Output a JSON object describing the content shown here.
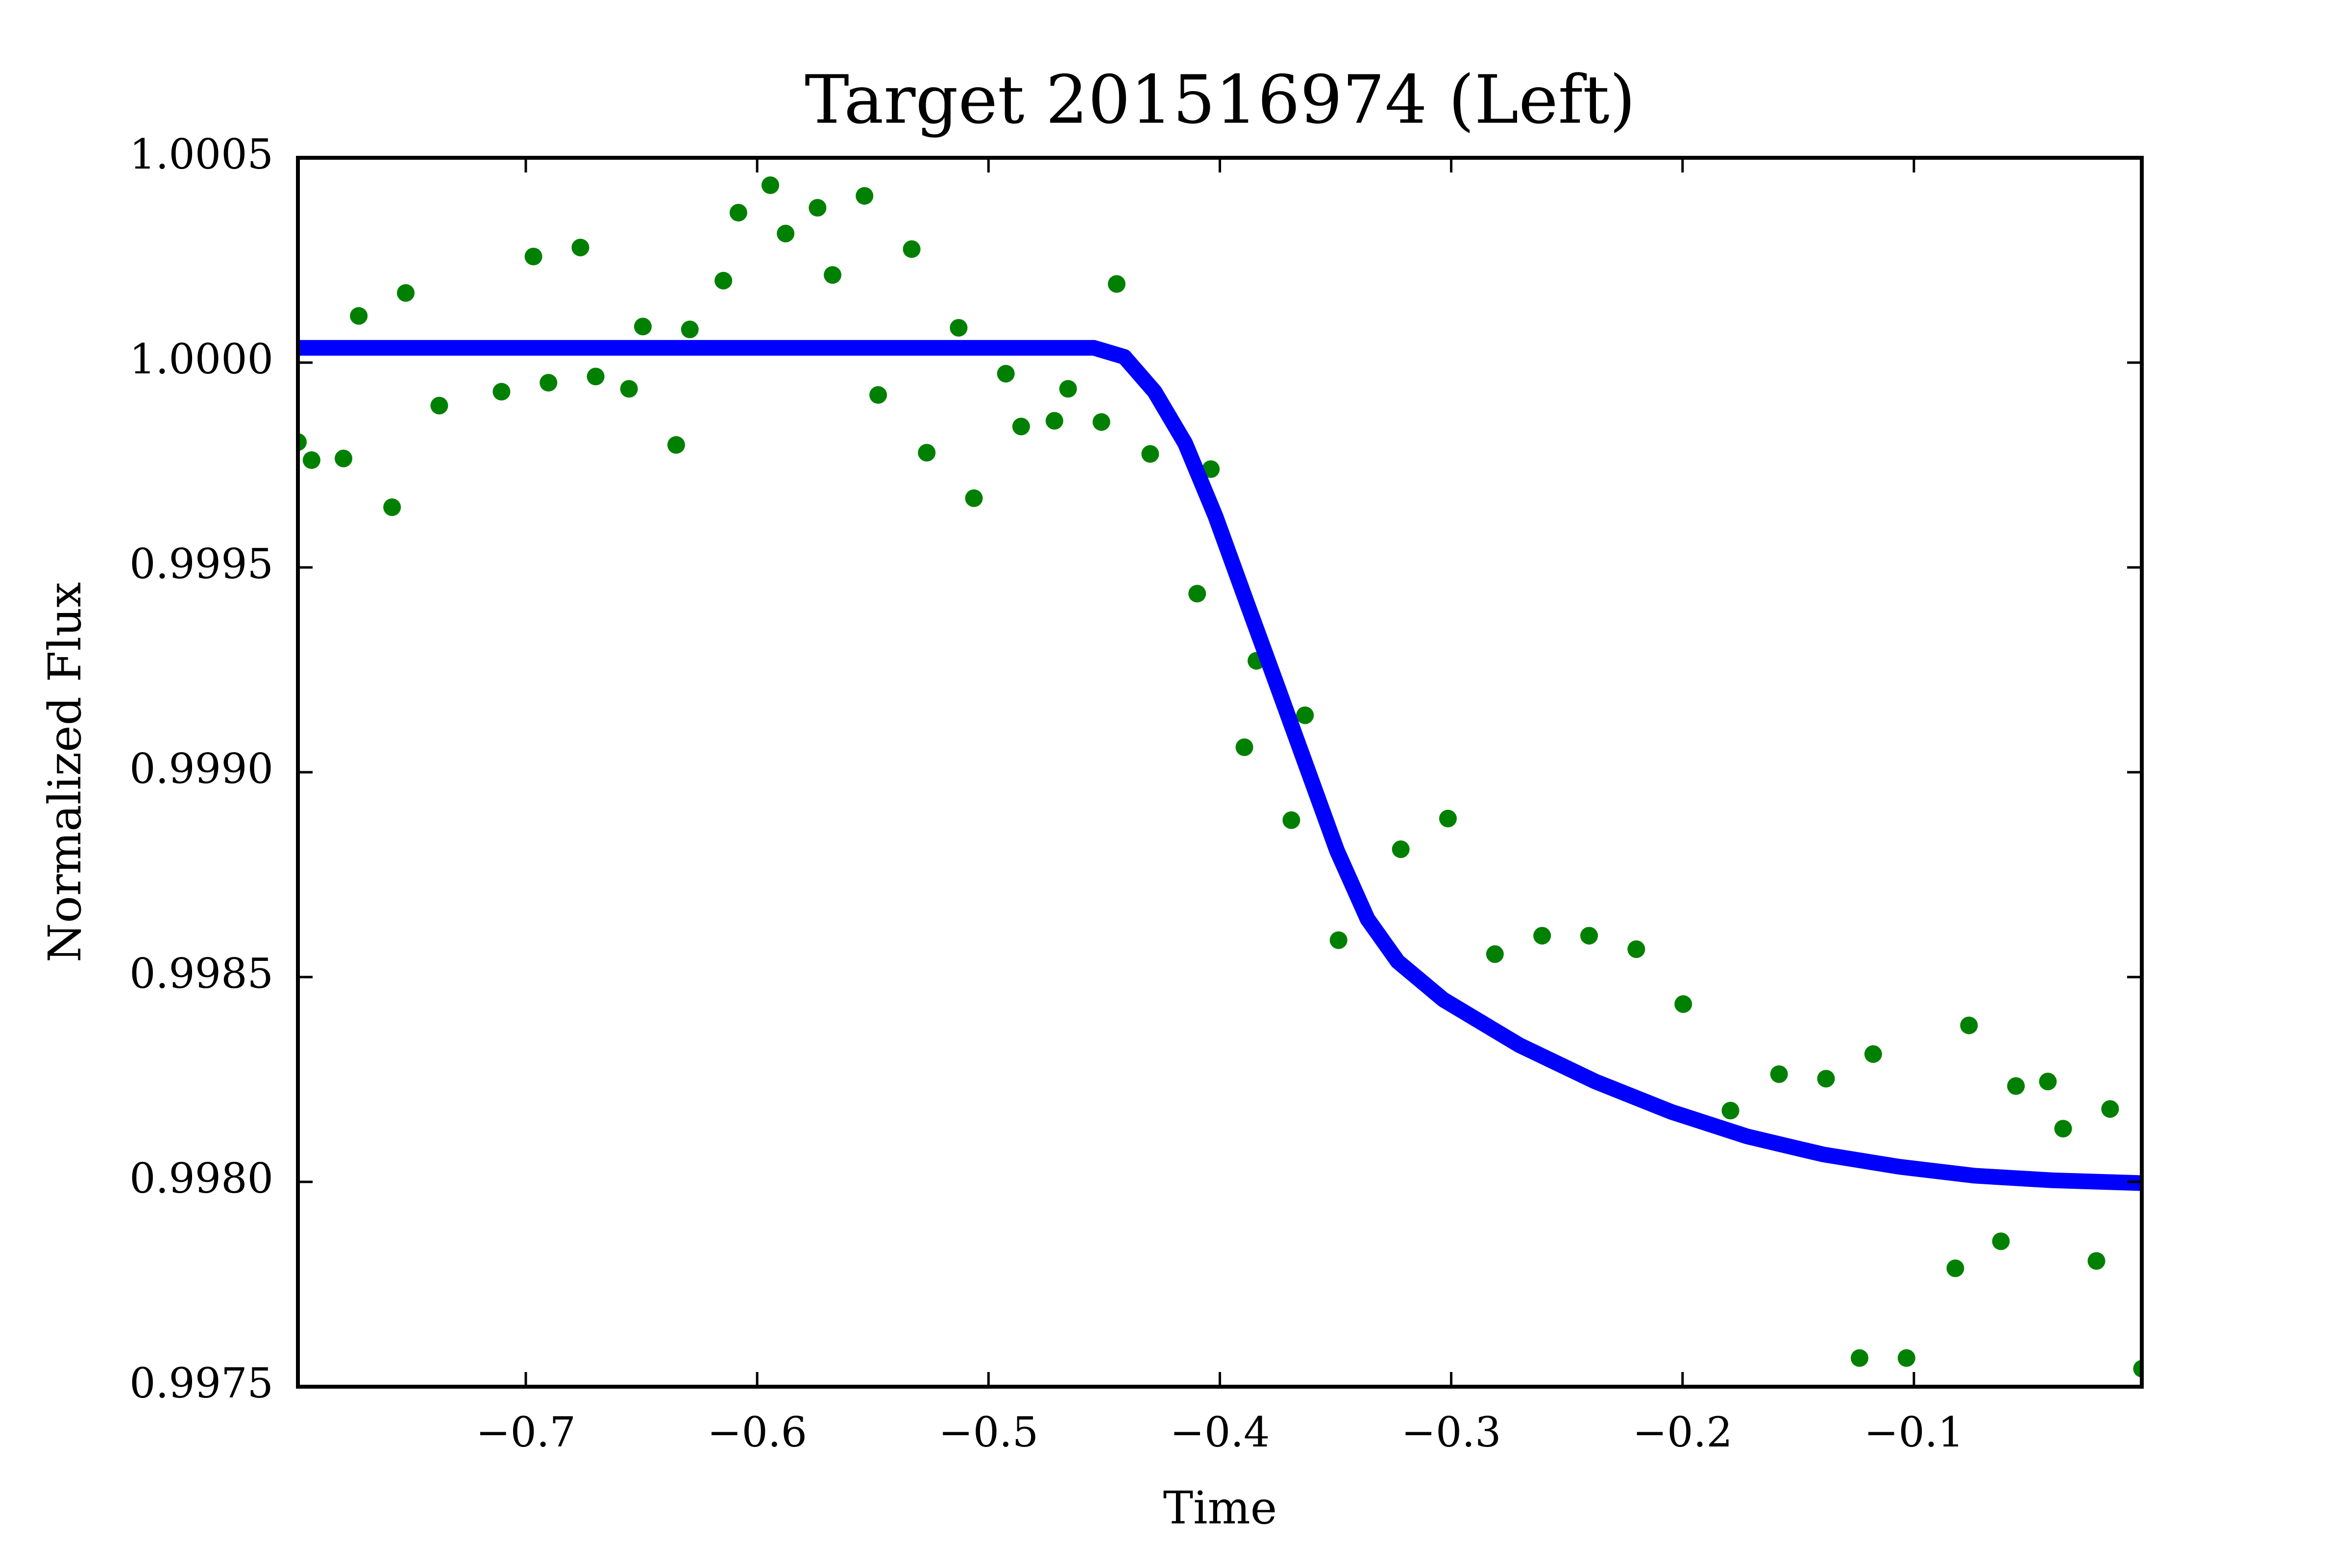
{
  "chart_data": {
    "type": "scatter",
    "title": "Target 201516974 (Left)",
    "x_label": "Time",
    "y_label": "Normalized Flux",
    "xlim": [
      -0.7985,
      -0.0015
    ],
    "ylim": [
      0.9975,
      1.0005
    ],
    "xticks": [
      {
        "value": -0.7,
        "label": "−0.7"
      },
      {
        "value": -0.6,
        "label": "−0.6"
      },
      {
        "value": -0.5,
        "label": "−0.5"
      },
      {
        "value": -0.4,
        "label": "−0.4"
      },
      {
        "value": -0.3,
        "label": "−0.3"
      },
      {
        "value": -0.2,
        "label": "−0.2"
      },
      {
        "value": -0.1,
        "label": "−0.1"
      }
    ],
    "yticks": [
      0.9975,
      {
        "value": 0.998,
        "label": "0.9980"
      },
      0.9985,
      {
        "value": 0.999,
        "label": "0.9990"
      },
      0.9995,
      {
        "value": 1,
        "label": "1.0000"
      },
      1.0005
    ],
    "grid": false,
    "series": [
      {
        "type": "scatter",
        "color": "#008000",
        "x": [
          -0.7985,
          -0.7926,
          -0.7788,
          -0.7722,
          -0.7578,
          -0.7519,
          -0.7374,
          -0.7105,
          -0.6967,
          -0.6902,
          -0.6764,
          -0.6698,
          -0.6554,
          -0.6494,
          -0.635,
          -0.6291,
          -0.6146,
          -0.6081,
          -0.5943,
          -0.5877,
          -0.5739,
          -0.5674,
          -0.5536,
          -0.5477,
          -0.5332,
          -0.5267,
          -0.5129,
          -0.5063,
          -0.4925,
          -0.4859,
          -0.4715,
          -0.4656,
          -0.4512,
          -0.4446,
          -0.4301,
          -0.4098,
          -0.4039,
          -0.3894,
          -0.3842,
          -0.3691,
          -0.3632,
          -0.3487,
          -0.3218,
          -0.3014,
          -0.2811,
          -0.2607,
          -0.2404,
          -0.22,
          -0.1997,
          -0.1793,
          -0.1583,
          -0.138,
          -0.1235,
          -0.1176,
          -0.1032,
          -0.0821,
          -0.0762,
          -0.0624,
          -0.0559,
          -0.0421,
          -0.0355,
          -0.0211,
          -0.0152,
          -0.0014
        ],
        "values": [
          0.999806,
          0.999762,
          0.999766,
          1.000114,
          0.999647,
          1.00017,
          0.999895,
          0.999929,
          1.000259,
          0.999951,
          1.000281,
          0.999966,
          0.999936,
          1.000088,
          0.999799,
          1.000081,
          1.0002,
          1.000366,
          1.000433,
          1.000315,
          1.000378,
          1.000214,
          1.000407,
          0.999921,
          1.000277,
          0.99978,
          1.000085,
          0.999669,
          0.999973,
          0.999844,
          0.999858,
          0.999936,
          0.999855,
          1.000192,
          0.999777,
          0.999436,
          0.99974,
          0.999061,
          0.999272,
          0.998883,
          0.999139,
          0.99859,
          0.998812,
          0.998887,
          0.998556,
          0.998601,
          0.998601,
          0.998568,
          0.998434,
          0.998174,
          0.998263,
          0.998252,
          0.99757,
          0.998312,
          0.99757,
          0.997789,
          0.998382,
          0.997855,
          0.998234,
          0.998245,
          0.99813,
          0.997807,
          0.998178,
          0.997544
        ]
      },
      {
        "type": "line",
        "color": "#0000ff",
        "x": [
          -0.7985,
          -0.4544,
          -0.4413,
          -0.4282,
          -0.415,
          -0.4019,
          -0.3888,
          -0.3756,
          -0.3625,
          -0.3494,
          -0.3362,
          -0.3231,
          -0.3034,
          -0.2706,
          -0.2377,
          -0.2049,
          -0.1721,
          -0.1392,
          -0.1064,
          -0.0736,
          -0.0408,
          -0.0015
        ],
        "values": [
          1.000036,
          1.000036,
          1.000014,
          0.999929,
          0.999803,
          0.999625,
          0.999421,
          0.999217,
          0.999013,
          0.998809,
          0.998642,
          0.998538,
          0.998445,
          0.998334,
          0.998245,
          0.998171,
          0.998111,
          0.998067,
          0.998037,
          0.998015,
          0.998004,
          0.997997
        ]
      }
    ]
  }
}
